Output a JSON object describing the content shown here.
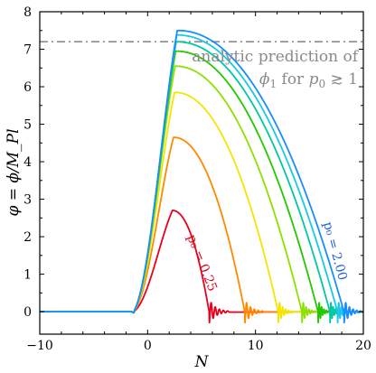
{
  "chart_data": {
    "type": "line",
    "xlabel": "N",
    "ylabel": "φ = ϕ/M_Pl",
    "xlim": [
      -10,
      20
    ],
    "ylim": [
      -0.6,
      8
    ],
    "x_ticks": [
      "−10",
      "0",
      "10",
      "20"
    ],
    "y_ticks": [
      "0",
      "1",
      "2",
      "3",
      "4",
      "5",
      "6",
      "7",
      "8"
    ],
    "reference_line": {
      "y": 7.2,
      "style": "dash-dot",
      "color": "#8c8c8c"
    },
    "annotation": {
      "line1": "analytic prediction of",
      "line2_a": "ϕ",
      "line2_sub": "1",
      "line2_b": " for ",
      "line2_c": "p",
      "line2_sub2": "0",
      "line2_d": " ≳ 1"
    },
    "series_labels": [
      {
        "text": "p₀ = 0.25",
        "color": "#e0001b"
      },
      {
        "text": "p₀ = 2.00",
        "color": "#1f5fe0"
      }
    ],
    "series": [
      {
        "p0": 0.25,
        "color": "#e8001c",
        "peak_x": 2.3,
        "peak_y": 2.7,
        "end_x": 5.7,
        "osc_end": 7.6
      },
      {
        "p0": 0.5,
        "color": "#ff8a00",
        "peak_x": 2.4,
        "peak_y": 4.65,
        "end_x": 9.0,
        "osc_end": 10.8
      },
      {
        "p0": 0.75,
        "color": "#f2e600",
        "peak_x": 2.5,
        "peak_y": 5.85,
        "end_x": 12.1,
        "osc_end": 13.5
      },
      {
        "p0": 1.0,
        "color": "#8fe000",
        "peak_x": 2.55,
        "peak_y": 6.55,
        "end_x": 14.3,
        "osc_end": 15.6
      },
      {
        "p0": 1.25,
        "color": "#22c900",
        "peak_x": 2.6,
        "peak_y": 6.95,
        "end_x": 15.8,
        "osc_end": 16.9
      },
      {
        "p0": 1.5,
        "color": "#00c8a0",
        "peak_x": 2.65,
        "peak_y": 7.2,
        "end_x": 16.9,
        "osc_end": 17.9
      },
      {
        "p0": 1.75,
        "color": "#19c8e6",
        "peak_x": 2.7,
        "peak_y": 7.38,
        "end_x": 17.6,
        "osc_end": 18.8
      },
      {
        "p0": 2.0,
        "color": "#1a8cff",
        "peak_x": 2.75,
        "peak_y": 7.5,
        "end_x": 18.2,
        "osc_end": 19.9
      }
    ]
  }
}
